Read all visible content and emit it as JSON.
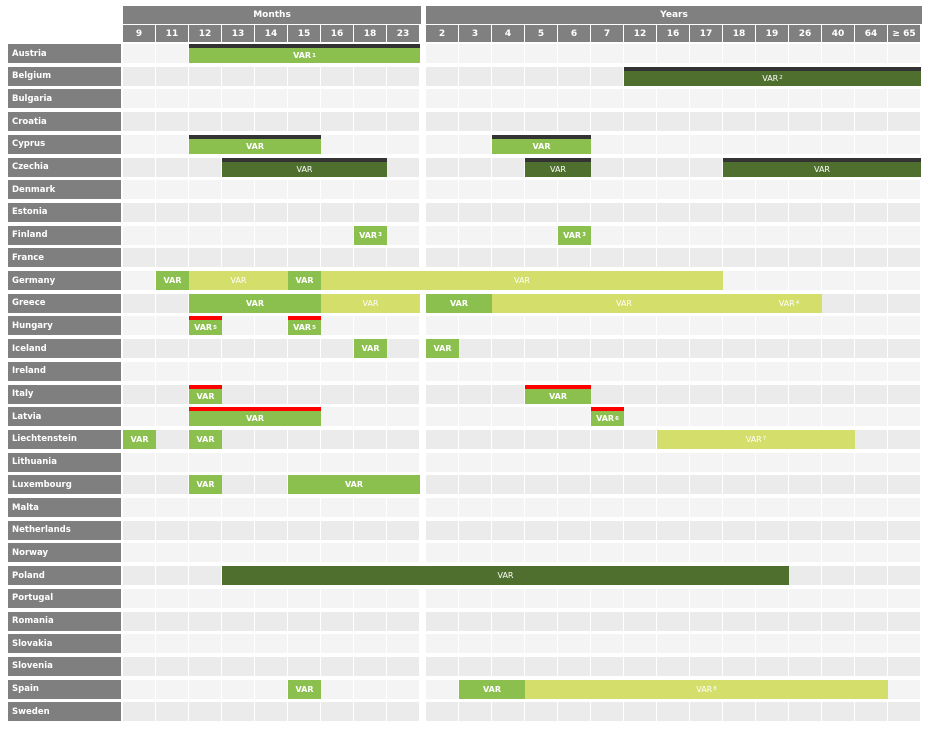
{
  "headers": {
    "months": "Months",
    "years": "Years"
  },
  "month_columns": [
    "9",
    "11",
    "12",
    "13",
    "14",
    "15",
    "16",
    "18",
    "23"
  ],
  "year_columns": [
    "2",
    "3",
    "4",
    "5",
    "6",
    "7",
    "12",
    "16",
    "17",
    "18",
    "19",
    "26",
    "40",
    "64",
    "≥ 65"
  ],
  "colors": {
    "medium": "#8bc04f",
    "dark": "#4f6f2e",
    "light": "#d3de6b",
    "top_dark": "#333333",
    "top_red": "#ff0000",
    "header": "#808080"
  },
  "rows": [
    {
      "country": "Austria",
      "bars": [
        {
          "start": "12m",
          "end": "23m",
          "style": "medium",
          "top": "dark",
          "label": "VAR",
          "sup": "1"
        }
      ]
    },
    {
      "country": "Belgium",
      "bars": [
        {
          "start": "12y",
          "end": "≥ 65y",
          "style": "dark",
          "top": "dark",
          "label": "VAR",
          "sup": "2"
        }
      ]
    },
    {
      "country": "Bulgaria",
      "bars": []
    },
    {
      "country": "Croatia",
      "bars": []
    },
    {
      "country": "Cyprus",
      "bars": [
        {
          "start": "12m",
          "end": "15m",
          "style": "medium",
          "top": "dark",
          "label": "VAR"
        },
        {
          "start": "4y",
          "end": "6y",
          "style": "medium",
          "top": "dark",
          "label": "VAR"
        }
      ]
    },
    {
      "country": "Czechia",
      "bars": [
        {
          "start": "13m",
          "end": "18m",
          "style": "dark",
          "top": "dark",
          "label": "VAR"
        },
        {
          "start": "5y",
          "end": "6y",
          "style": "dark",
          "top": "dark",
          "label": "VAR"
        },
        {
          "start": "18y",
          "end": "≥ 65y",
          "style": "dark",
          "top": "dark",
          "label": "VAR"
        }
      ]
    },
    {
      "country": "Denmark",
      "bars": []
    },
    {
      "country": "Estonia",
      "bars": []
    },
    {
      "country": "Finland",
      "bars": [
        {
          "start": "18m",
          "end": "18m",
          "style": "medium",
          "label": "VAR",
          "sup": "3"
        },
        {
          "start": "6y",
          "end": "6y",
          "style": "medium",
          "label": "VAR",
          "sup": "3"
        }
      ]
    },
    {
      "country": "France",
      "bars": []
    },
    {
      "country": "Germany",
      "bars": [
        {
          "start": "11m",
          "end": "11m",
          "style": "medium",
          "label": "VAR"
        },
        {
          "start": "12m",
          "end": "14m",
          "style": "light",
          "label": "VAR"
        },
        {
          "start": "15m",
          "end": "15m",
          "style": "medium",
          "label": "VAR"
        },
        {
          "start": "16m",
          "end": "17y",
          "style": "light",
          "label": "VAR"
        }
      ]
    },
    {
      "country": "Greece",
      "bars": [
        {
          "start": "12m",
          "end": "15m",
          "style": "medium",
          "label": "VAR"
        },
        {
          "start": "16m",
          "end": "23m",
          "style": "light",
          "label": "VAR"
        },
        {
          "start": "2y",
          "end": "3y",
          "style": "medium",
          "label": "VAR"
        },
        {
          "start": "4y",
          "end": "18y",
          "style": "light",
          "label": "VAR"
        },
        {
          "start": "19y",
          "end": "26y",
          "style": "light",
          "label": "VAR",
          "sup": "4"
        }
      ]
    },
    {
      "country": "Hungary",
      "bars": [
        {
          "start": "12m",
          "end": "12m",
          "style": "medium",
          "top": "red",
          "label": "VAR",
          "sup": "5"
        },
        {
          "start": "15m",
          "end": "15m",
          "style": "medium",
          "top": "red",
          "label": "VAR",
          "sup": "5"
        }
      ]
    },
    {
      "country": "Iceland",
      "bars": [
        {
          "start": "18m",
          "end": "18m",
          "style": "medium",
          "label": "VAR"
        },
        {
          "start": "2y",
          "end": "2y",
          "style": "medium",
          "label": "VAR"
        }
      ]
    },
    {
      "country": "Ireland",
      "bars": []
    },
    {
      "country": "Italy",
      "bars": [
        {
          "start": "12m",
          "end": "12m",
          "style": "medium",
          "top": "red",
          "label": "VAR"
        },
        {
          "start": "5y",
          "end": "6y",
          "style": "medium",
          "top": "red",
          "label": "VAR"
        }
      ]
    },
    {
      "country": "Latvia",
      "bars": [
        {
          "start": "12m",
          "end": "15m",
          "style": "medium",
          "top": "red",
          "label": "VAR"
        },
        {
          "start": "7y",
          "end": "7y",
          "style": "medium",
          "top": "red",
          "label": "VAR",
          "sup": "6"
        }
      ]
    },
    {
      "country": "Liechtenstein",
      "bars": [
        {
          "start": "9m",
          "end": "9m",
          "style": "medium",
          "label": "VAR"
        },
        {
          "start": "12m",
          "end": "12m",
          "style": "medium",
          "label": "VAR"
        },
        {
          "start": "16y",
          "end": "40y",
          "style": "light",
          "label": "VAR",
          "sup": "7"
        }
      ]
    },
    {
      "country": "Lithuania",
      "bars": []
    },
    {
      "country": "Luxembourg",
      "bars": [
        {
          "start": "12m",
          "end": "12m",
          "style": "medium",
          "label": "VAR"
        },
        {
          "start": "15m",
          "end": "23m",
          "style": "medium",
          "label": "VAR"
        }
      ]
    },
    {
      "country": "Malta",
      "bars": []
    },
    {
      "country": "Netherlands",
      "bars": []
    },
    {
      "country": "Norway",
      "bars": []
    },
    {
      "country": "Poland",
      "bars": [
        {
          "start": "13m",
          "end": "19y",
          "style": "dark",
          "label": "VAR"
        }
      ]
    },
    {
      "country": "Portugal",
      "bars": []
    },
    {
      "country": "Romania",
      "bars": []
    },
    {
      "country": "Slovakia",
      "bars": []
    },
    {
      "country": "Slovenia",
      "bars": []
    },
    {
      "country": "Spain",
      "bars": [
        {
          "start": "15m",
          "end": "15m",
          "style": "medium",
          "label": "VAR"
        },
        {
          "start": "3y",
          "end": "4y",
          "style": "medium",
          "label": "VAR"
        },
        {
          "start": "5y",
          "end": "64y",
          "style": "light",
          "label": "VAR",
          "sup": "8"
        }
      ]
    },
    {
      "country": "Sweden",
      "bars": []
    }
  ]
}
